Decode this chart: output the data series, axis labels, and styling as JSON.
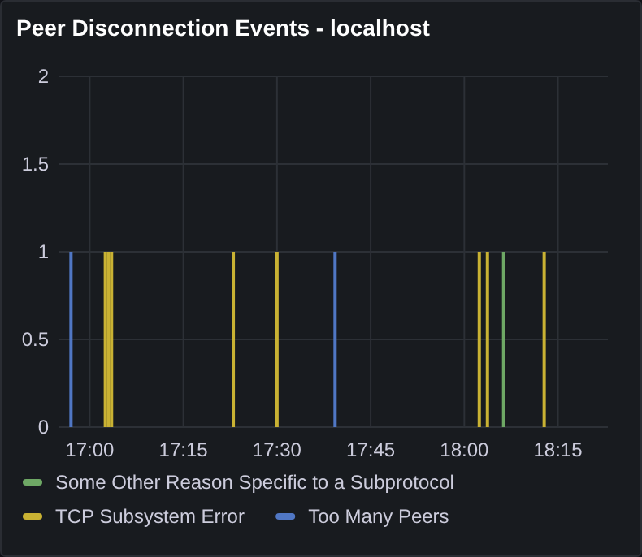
{
  "chart_data": {
    "type": "bar",
    "title": "Peer Disconnection Events - localhost",
    "series": [
      {
        "name": "Some Other Reason Specific to a Subprotocol",
        "color": "#6ea865",
        "x": [
          18.105
        ],
        "values": [
          1
        ]
      },
      {
        "name": "TCP Subsystem Error",
        "color": "#c9b233",
        "x": [
          17.0417,
          17.05,
          17.0583,
          17.3833,
          17.5,
          18.04,
          18.0617,
          18.2133
        ],
        "values": [
          1,
          1,
          1,
          1,
          1,
          1,
          1,
          1
        ]
      },
      {
        "name": "Too Many Peers",
        "color": "#5077c4",
        "x": [
          16.95,
          17.655
        ],
        "values": [
          1,
          1
        ]
      }
    ],
    "xlim": [
      16.9167,
      18.3833
    ],
    "xticks": [
      {
        "value": 17,
        "label": "17:00"
      },
      {
        "value": 17.25,
        "label": "17:15"
      },
      {
        "value": 17.5,
        "label": "17:30"
      },
      {
        "value": 17.75,
        "label": "17:45"
      },
      {
        "value": 18,
        "label": "18:00"
      },
      {
        "value": 18.25,
        "label": "18:15"
      }
    ],
    "ylim": [
      0,
      2
    ],
    "yticks": [
      0,
      0.5,
      1,
      1.5,
      2
    ],
    "grid": true,
    "legend": "bottom"
  }
}
